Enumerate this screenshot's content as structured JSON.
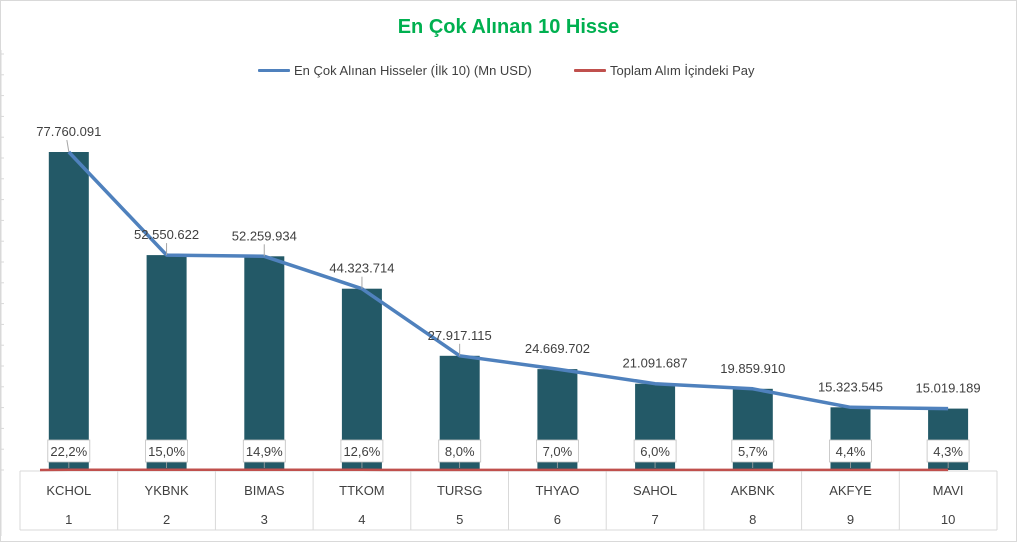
{
  "title": "En Çok Alınan 10 Hisse",
  "colors": {
    "bar": "#235967",
    "line": "#4f81bd",
    "share_line": "#c0504d",
    "title": "#00b050",
    "text": "#404040",
    "grid": "#d9d9d9"
  },
  "legend": {
    "series1": "En Çok Alınan Hisseler (İlk 10) (Mn USD)",
    "series2": "Toplam Alım İçindeki Pay"
  },
  "chart_data": {
    "type": "bar",
    "title": "En Çok Alınan 10 Hisse",
    "categories": [
      "KCHOL",
      "YKBNK",
      "BIMAS",
      "TTKOM",
      "TURSG",
      "THYAO",
      "SAHOL",
      "AKBNK",
      "AKFYE",
      "MAVI"
    ],
    "ranks": [
      "1",
      "2",
      "3",
      "4",
      "5",
      "6",
      "7",
      "8",
      "9",
      "10"
    ],
    "series": [
      {
        "name": "En Çok Alınan Hisseler (İlk 10) (Mn USD)",
        "values": [
          77760091,
          52550622,
          52259934,
          44323714,
          27917115,
          24669702,
          21091687,
          19859910,
          15323545,
          15019189
        ],
        "labels": [
          "77.760.091",
          "52.550.622",
          "52.259.934",
          "44.323.714",
          "27.917.115",
          "24.669.702",
          "21.091.687",
          "19.859.910",
          "15.323.545",
          "15.019.189"
        ]
      },
      {
        "name": "Toplam Alım İçindeki Pay",
        "values": [
          22.2,
          15.0,
          14.9,
          12.6,
          8.0,
          7.0,
          6.0,
          5.7,
          4.4,
          4.3
        ],
        "labels": [
          "22,2%",
          "15,0%",
          "14,9%",
          "12,6%",
          "8,0%",
          "7,0%",
          "6,0%",
          "5,7%",
          "4,4%",
          "4,3%"
        ]
      }
    ],
    "ylim": [
      0,
      80000000
    ],
    "legend_position": "top",
    "grid": false
  }
}
